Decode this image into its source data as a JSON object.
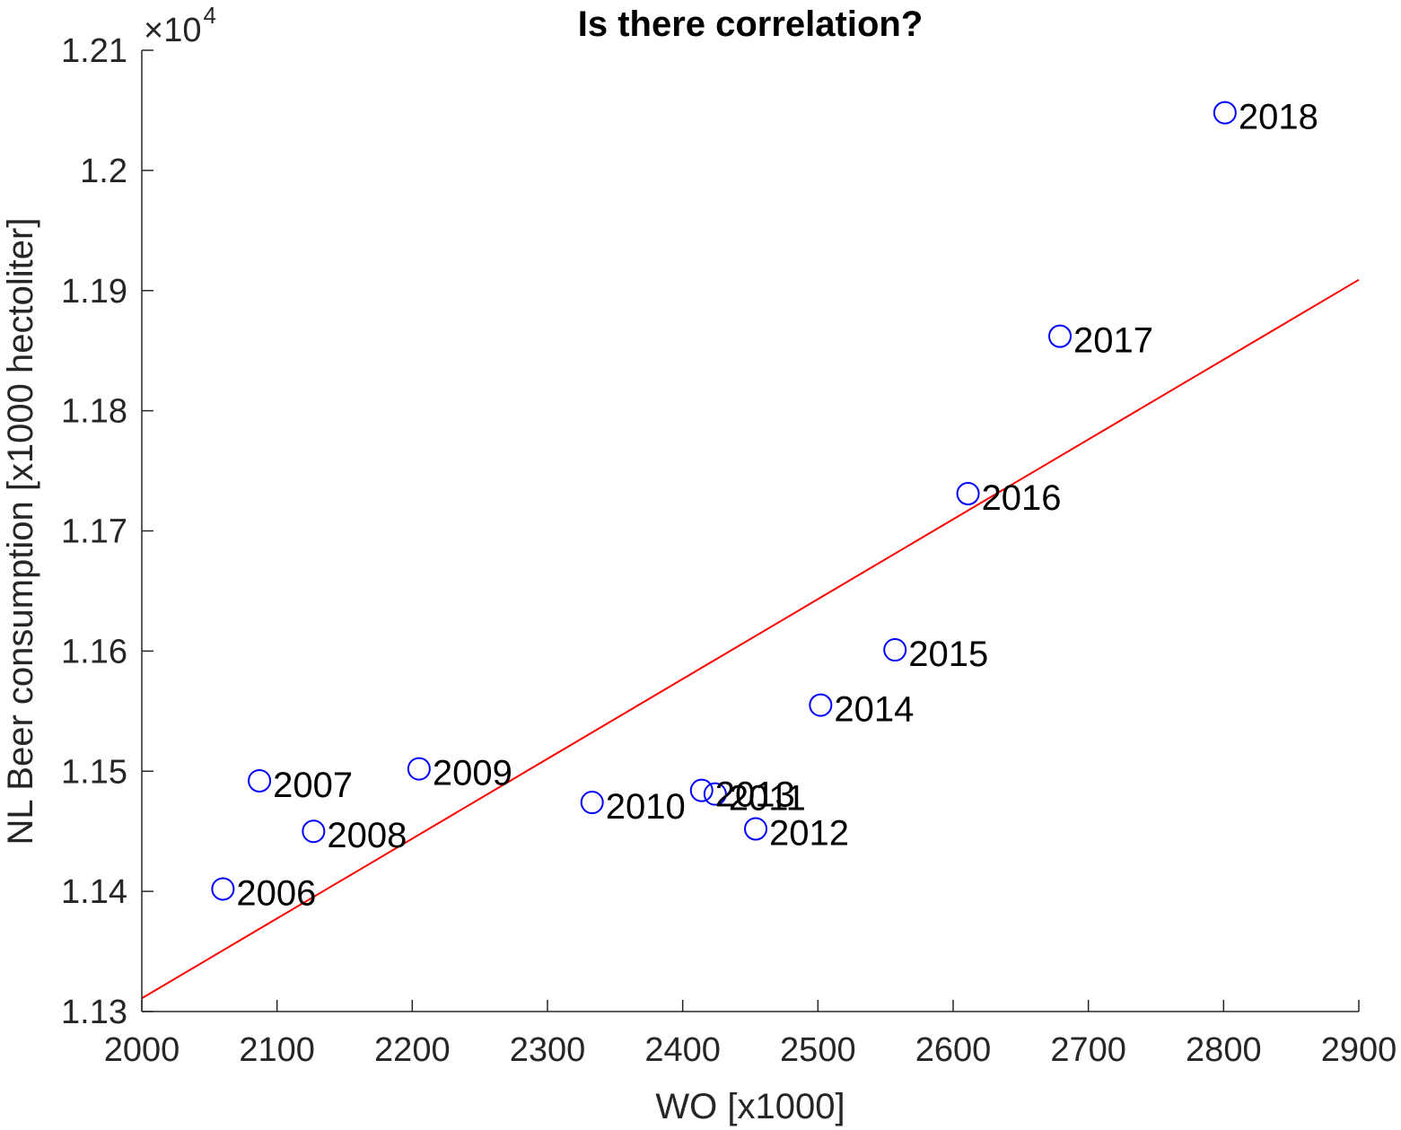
{
  "chart_data": {
    "type": "scatter",
    "title": "Is there correlation?",
    "xlabel": "WO [x1000]",
    "ylabel": "NL Beer consumption [x1000 hectoliter]",
    "xlim": [
      2000,
      2900
    ],
    "ylim": [
      11300,
      12100
    ],
    "x_ticks": [
      2000,
      2100,
      2200,
      2300,
      2400,
      2500,
      2600,
      2700,
      2800,
      2900
    ],
    "y_ticks": [
      11300,
      11400,
      11500,
      11600,
      11700,
      11800,
      11900,
      12000,
      12100
    ],
    "y_tick_labels": [
      "1.13",
      "1.14",
      "1.15",
      "1.16",
      "1.17",
      "1.18",
      "1.19",
      "1.2",
      "1.21"
    ],
    "y_exponent": {
      "base": "×10",
      "power": "4"
    },
    "grid": false,
    "marker": "circle",
    "colors": {
      "points": "#0000ff",
      "fit_line": "#ff0000",
      "axes": "#262626"
    },
    "points": [
      {
        "label": "2006",
        "x": 2060,
        "y": 11402
      },
      {
        "label": "2007",
        "x": 2087,
        "y": 11492
      },
      {
        "label": "2008",
        "x": 2127,
        "y": 11450
      },
      {
        "label": "2009",
        "x": 2205,
        "y": 11502
      },
      {
        "label": "2010",
        "x": 2333,
        "y": 11474
      },
      {
        "label": "2011",
        "x": 2424,
        "y": 11481
      },
      {
        "label": "2012",
        "x": 2454,
        "y": 11452
      },
      {
        "label": "2013",
        "x": 2414,
        "y": 11484
      },
      {
        "label": "2014",
        "x": 2502,
        "y": 11555
      },
      {
        "label": "2015",
        "x": 2557,
        "y": 11601
      },
      {
        "label": "2016",
        "x": 2611,
        "y": 11731
      },
      {
        "label": "2017",
        "x": 2679,
        "y": 11862
      },
      {
        "label": "2018",
        "x": 2801,
        "y": 12048
      }
    ],
    "fit_line": {
      "x": [
        2000,
        2900
      ],
      "y": [
        11311,
        11909
      ]
    }
  }
}
